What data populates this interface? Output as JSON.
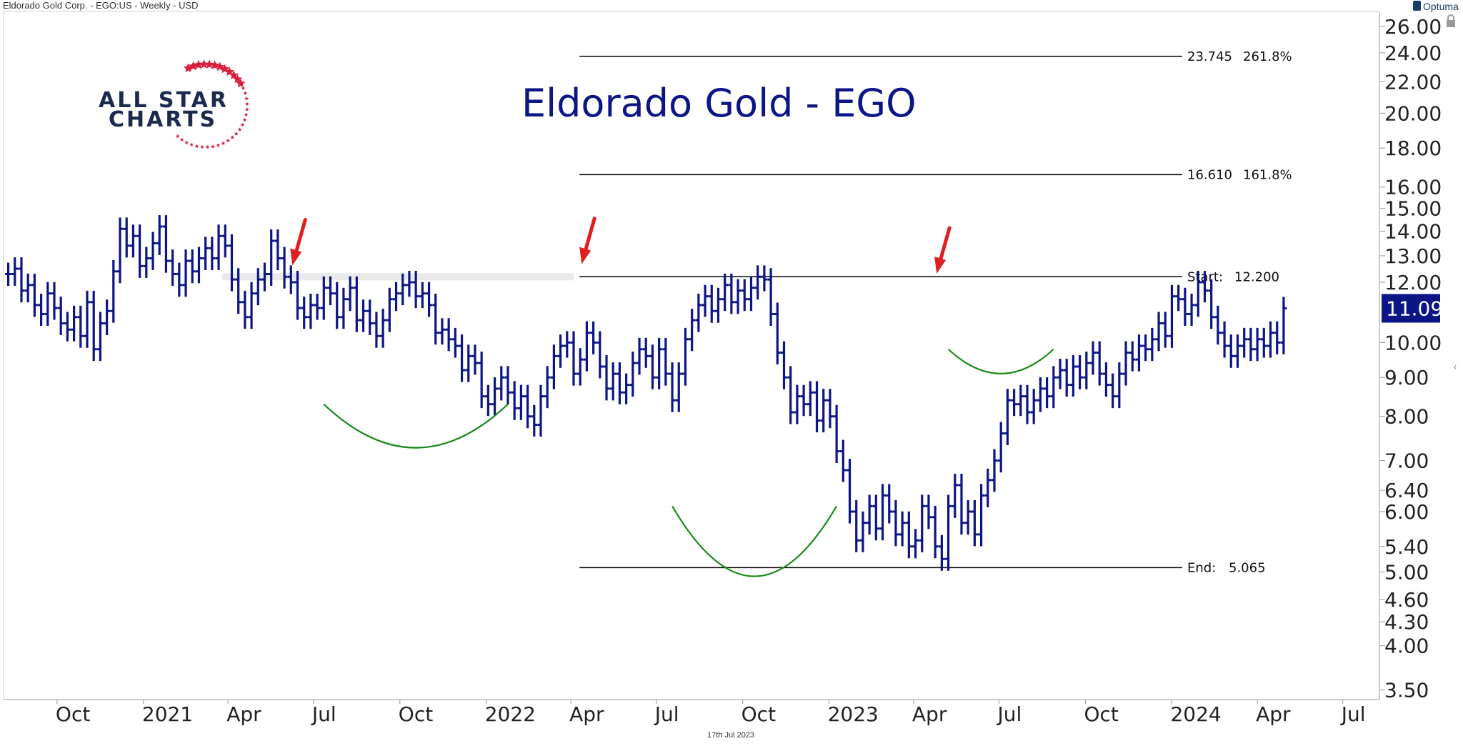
{
  "header": {
    "symbol_info": "Eldorado Gold Corp. - EGO:US - Weekly - USD",
    "brand": "Optuma"
  },
  "title": "Eldorado Gold - EGO",
  "logo": {
    "line1": "ALL STAR",
    "line2": "CHARTS"
  },
  "footer_date": "17th Jul 2023",
  "last_price": "11.09",
  "colors": {
    "price_bar": "#0b1586",
    "title": "#0b1586",
    "arrow": "#e02020",
    "arc": "#1a8a1a",
    "last_price_bg": "#0b1586",
    "star": "#d81e3c"
  },
  "chart_data": {
    "type": "ohlc",
    "title": "Eldorado Gold - EGO",
    "scale": "log",
    "y_ticks": [
      "26.00",
      "24.00",
      "22.00",
      "20.00",
      "18.00",
      "16.00",
      "15.00",
      "14.00",
      "13.00",
      "12.00",
      "10.00",
      "9.00",
      "8.00",
      "7.00",
      "6.40",
      "6.00",
      "5.40",
      "5.00",
      "4.60",
      "4.30",
      "4.00",
      "3.50"
    ],
    "ylim": [
      3.4,
      27.2
    ],
    "xlim": [
      "2020-08-05",
      "2024-08-09"
    ],
    "x_ticks": [
      {
        "date": "2020-10-01",
        "label": "Oct"
      },
      {
        "date": "2021-01-01",
        "label": "2021"
      },
      {
        "date": "2021-04-01",
        "label": "Apr"
      },
      {
        "date": "2021-07-01",
        "label": "Jul"
      },
      {
        "date": "2021-10-01",
        "label": "Oct"
      },
      {
        "date": "2022-01-01",
        "label": "2022"
      },
      {
        "date": "2022-04-01",
        "label": "Apr"
      },
      {
        "date": "2022-07-01",
        "label": "Jul"
      },
      {
        "date": "2022-10-01",
        "label": "Oct"
      },
      {
        "date": "2023-01-01",
        "label": "2023"
      },
      {
        "date": "2023-04-01",
        "label": "Apr"
      },
      {
        "date": "2023-07-01",
        "label": "Jul"
      },
      {
        "date": "2023-10-01",
        "label": "Oct"
      },
      {
        "date": "2024-01-01",
        "label": "2024"
      },
      {
        "date": "2024-04-01",
        "label": "Apr"
      },
      {
        "date": "2024-07-01",
        "label": "Jul"
      }
    ],
    "series": [
      {
        "start_date": "2020-08-10",
        "interval_days": 7,
        "close": [
          12.3,
          12.5,
          11.7,
          11.9,
          11.2,
          10.9,
          11.6,
          11.1,
          10.6,
          10.4,
          10.8,
          10.2,
          11.3,
          9.8,
          10.6,
          11.0,
          12.4,
          14.1,
          13.4,
          13.8,
          12.6,
          12.9,
          13.5,
          14.2,
          12.8,
          12.3,
          11.9,
          12.8,
          12.4,
          12.9,
          13.3,
          12.9,
          13.8,
          13.4,
          12.1,
          11.3,
          10.8,
          11.6,
          12.1,
          12.3,
          13.6,
          12.9,
          12.2,
          12.0,
          11.1,
          10.8,
          11.2,
          11.1,
          11.8,
          11.6,
          10.8,
          11.4,
          11.8,
          10.7,
          11.0,
          10.6,
          10.2,
          10.7,
          11.4,
          11.6,
          11.9,
          12.0,
          11.5,
          11.6,
          11.2,
          10.3,
          10.4,
          10.1,
          9.9,
          9.2,
          9.6,
          9.4,
          8.5,
          8.3,
          8.7,
          9.0,
          8.6,
          8.2,
          8.5,
          8.0,
          7.8,
          8.5,
          9.0,
          9.6,
          9.9,
          10.0,
          9.1,
          9.5,
          10.3,
          10.0,
          9.3,
          8.7,
          9.1,
          8.6,
          8.8,
          9.4,
          9.8,
          9.6,
          9.0,
          9.8,
          9.1,
          8.4,
          9.1,
          10.1,
          10.7,
          11.2,
          11.5,
          11.0,
          11.4,
          11.9,
          11.3,
          11.7,
          11.4,
          11.8,
          12.2,
          12.1,
          10.9,
          9.7,
          9.0,
          8.1,
          8.5,
          8.3,
          8.6,
          7.9,
          8.4,
          8.0,
          7.2,
          6.8,
          6.0,
          5.5,
          5.8,
          6.1,
          5.7,
          6.3,
          6.0,
          5.6,
          5.8,
          5.4,
          5.5,
          6.1,
          5.9,
          5.4,
          5.2,
          6.1,
          6.5,
          5.8,
          6.0,
          5.6,
          6.3,
          6.6,
          7.0,
          7.6,
          8.4,
          8.3,
          8.5,
          8.1,
          8.4,
          8.7,
          8.5,
          9.0,
          9.2,
          8.8,
          9.3,
          9.0,
          9.4,
          9.7,
          9.1,
          8.8,
          8.5,
          9.1,
          9.7,
          9.5,
          9.9,
          9.8,
          10.1,
          10.6,
          10.2,
          11.5,
          11.4,
          10.9,
          11.2,
          12.0,
          11.7,
          10.8,
          10.3,
          9.9,
          9.6,
          9.9,
          10.1,
          9.8,
          10.1,
          9.9,
          10.3,
          10.0,
          11.09
        ]
      }
    ],
    "levels": [
      {
        "value": 23.745,
        "label": "23.745",
        "pct": "261.8%"
      },
      {
        "value": 16.61,
        "label": "16.610",
        "pct": "161.8%"
      },
      {
        "value": 12.2,
        "label": "Start:",
        "pct": "12.200"
      },
      {
        "value": 5.065,
        "label": "End:",
        "pct": "5.065"
      }
    ],
    "resistance_band": {
      "from": "2021-05-03",
      "to": "2022-04-04",
      "value": 12.2
    },
    "annotation_arrows": [
      {
        "date": "2021-06-07",
        "price": 12.3
      },
      {
        "date": "2022-04-11",
        "price": 12.35
      },
      {
        "date": "2023-04-24",
        "price": 12.0
      }
    ],
    "annotation_arcs": [
      {
        "from": "2021-07-12",
        "to": "2022-01-24",
        "top": 8.3,
        "bottom": 7.2
      },
      {
        "from": "2022-07-18",
        "to": "2023-01-09",
        "top": 6.1,
        "bottom": 4.85
      },
      {
        "from": "2023-05-08",
        "to": "2023-08-28",
        "top": 9.8,
        "bottom": 9.05
      }
    ]
  }
}
